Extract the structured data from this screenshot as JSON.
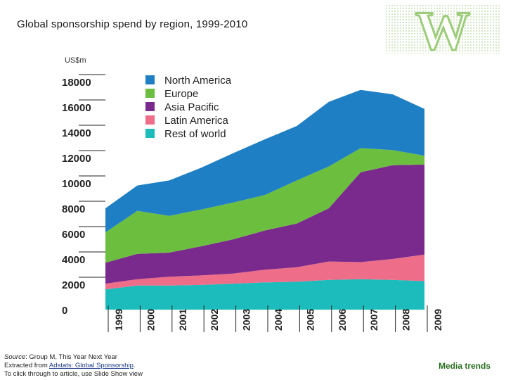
{
  "slide": {
    "title": "Global sponsorship spend by region, 1999-2010",
    "logo_letter": "W",
    "media_trends": "Media trends"
  },
  "footer": {
    "source_label": "Source",
    "source_rest": ": Group M, This Year Next Year",
    "extracted_prefix": "Extracted from ",
    "link_text": "Adstats: Global Sponsorship",
    "extracted_suffix": ".",
    "click_through": "To click through to article, use Slide Show view"
  },
  "colors": {
    "North America": "#1f7fc4",
    "Europe": "#6cbf3e",
    "Asia Pacific": "#7a2a8c",
    "Latin America": "#ee6e8a",
    "Rest of world": "#1cbcbc"
  },
  "chart_data": {
    "type": "area",
    "stacked": true,
    "ylabel": "US$m",
    "ylim": [
      0,
      18000
    ],
    "yticks": [
      0,
      2000,
      4000,
      6000,
      8000,
      10000,
      12000,
      14000,
      16000,
      18000
    ],
    "xtick_labels": [
      "1999",
      "2000",
      "2001",
      "2002",
      "2003",
      "2004",
      "2005",
      "2006",
      "2007",
      "2008",
      "2009"
    ],
    "x": [
      1999,
      2000,
      2001,
      2002,
      2003,
      2004,
      2005,
      2006,
      2007,
      2008,
      2009
    ],
    "legend_position": "top-left",
    "series": [
      {
        "name": "Rest of world",
        "values": [
          1600,
          1900,
          1900,
          1950,
          2050,
          2150,
          2200,
          2350,
          2400,
          2350,
          2250
        ]
      },
      {
        "name": "Latin America",
        "values": [
          450,
          500,
          700,
          750,
          800,
          1000,
          1150,
          1450,
          1350,
          1650,
          2100
        ]
      },
      {
        "name": "Asia Pacific",
        "values": [
          1650,
          2000,
          1900,
          2300,
          2700,
          3100,
          3450,
          4200,
          7100,
          7400,
          7100
        ]
      },
      {
        "name": "Europe",
        "values": [
          2400,
          3400,
          2900,
          2900,
          2900,
          2800,
          3400,
          3300,
          1900,
          1200,
          700
        ]
      },
      {
        "name": "North America",
        "values": [
          1900,
          2000,
          2800,
          3300,
          3900,
          4400,
          4300,
          5100,
          4600,
          4400,
          3700
        ]
      }
    ],
    "legend_order": [
      "North America",
      "Europe",
      "Asia Pacific",
      "Latin America",
      "Rest of world"
    ]
  }
}
